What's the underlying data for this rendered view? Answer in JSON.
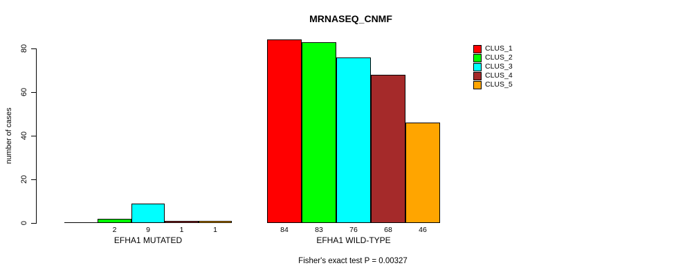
{
  "chart_data": {
    "type": "bar",
    "title": "MRNASEQ_CNMF",
    "ylabel": "number of cases",
    "ylim": [
      0,
      80
    ],
    "yticks": [
      0,
      20,
      40,
      60,
      80
    ],
    "categories": [
      "EFHA1 MUTATED",
      "EFHA1 WILD-TYPE"
    ],
    "series": [
      {
        "name": "CLUS_1",
        "color": "#FF0000",
        "values": [
          0,
          84
        ]
      },
      {
        "name": "CLUS_2",
        "color": "#00FF00",
        "values": [
          2,
          83
        ]
      },
      {
        "name": "CLUS_3",
        "color": "#00FFFF",
        "values": [
          9,
          76
        ]
      },
      {
        "name": "CLUS_4",
        "color": "#A52A2A",
        "values": [
          1,
          68
        ]
      },
      {
        "name": "CLUS_5",
        "color": "#FFA500",
        "values": [
          1,
          46
        ]
      }
    ],
    "bar_value_labels_shown": true,
    "legend_position": "top-right",
    "grid": false,
    "footnote": "Fisher's exact test P = 0.00327"
  }
}
